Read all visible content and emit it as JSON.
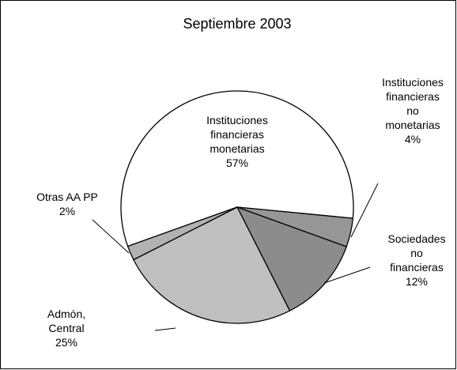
{
  "chart_data": {
    "type": "pie",
    "title": "Septiembre 2003",
    "categories": [
      "Instituciones financieras monetarias",
      "Instituciones financieras no monetarias",
      "Sociedades no financieras",
      "Admón, Central",
      "Otras AA PP"
    ],
    "values": [
      57,
      4,
      12,
      25,
      2
    ],
    "value_labels": [
      "57%",
      "4%",
      "12%",
      "25%",
      "2%"
    ],
    "colors": [
      "#ffffff",
      "#969696",
      "#8c8c8c",
      "#c0c0c0",
      "#b2b2b2"
    ]
  }
}
